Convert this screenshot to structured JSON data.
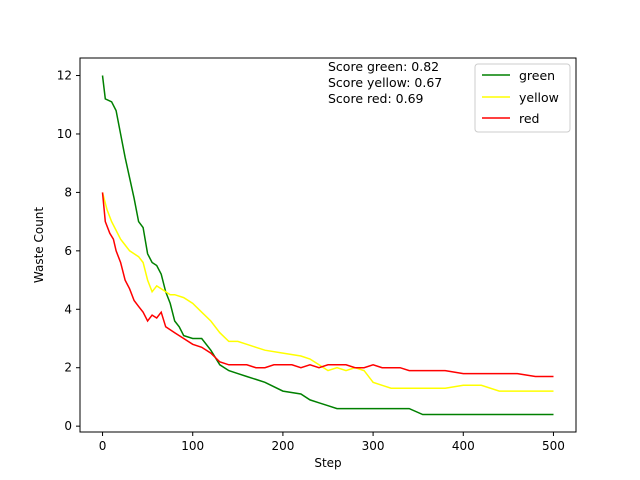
{
  "chart_data": {
    "type": "line",
    "xlabel": "Step",
    "ylabel": "Waste Count",
    "xlim": [
      -25,
      525
    ],
    "ylim": [
      -0.2,
      12.6
    ],
    "xticks": [
      0,
      100,
      200,
      300,
      400,
      500
    ],
    "yticks": [
      0,
      2,
      4,
      6,
      8,
      10,
      12
    ],
    "grid": false,
    "legend_position": "top-right",
    "annotations": [
      "Score green: 0.82",
      "Score yellow: 0.67",
      "Score red: 0.69"
    ],
    "series": [
      {
        "name": "green",
        "color": "#008000",
        "x": [
          0,
          3,
          10,
          15,
          20,
          25,
          30,
          35,
          40,
          45,
          50,
          55,
          60,
          65,
          70,
          75,
          80,
          85,
          90,
          100,
          110,
          120,
          130,
          140,
          150,
          160,
          170,
          180,
          200,
          220,
          230,
          240,
          250,
          260,
          280,
          300,
          320,
          340,
          355,
          400,
          450,
          500
        ],
        "y": [
          12.0,
          11.2,
          11.1,
          10.8,
          10.0,
          9.2,
          8.5,
          7.8,
          7.0,
          6.8,
          5.9,
          5.6,
          5.5,
          5.2,
          4.6,
          4.2,
          3.6,
          3.4,
          3.1,
          3.0,
          3.0,
          2.6,
          2.1,
          1.9,
          1.8,
          1.7,
          1.6,
          1.5,
          1.2,
          1.1,
          0.9,
          0.8,
          0.7,
          0.6,
          0.6,
          0.6,
          0.6,
          0.6,
          0.4,
          0.4,
          0.4,
          0.4
        ]
      },
      {
        "name": "yellow",
        "color": "#ffff00",
        "x": [
          0,
          5,
          10,
          15,
          20,
          25,
          30,
          35,
          40,
          45,
          50,
          55,
          60,
          65,
          70,
          75,
          80,
          90,
          100,
          110,
          120,
          130,
          140,
          150,
          160,
          170,
          180,
          200,
          220,
          230,
          240,
          250,
          260,
          270,
          280,
          290,
          300,
          310,
          320,
          340,
          360,
          380,
          400,
          420,
          440,
          460,
          480,
          500
        ],
        "y": [
          8.0,
          7.4,
          7.0,
          6.7,
          6.4,
          6.2,
          6.0,
          5.9,
          5.8,
          5.6,
          5.0,
          4.6,
          4.8,
          4.7,
          4.6,
          4.5,
          4.5,
          4.4,
          4.2,
          3.9,
          3.6,
          3.2,
          2.9,
          2.9,
          2.8,
          2.7,
          2.6,
          2.5,
          2.4,
          2.3,
          2.1,
          1.9,
          2.0,
          1.9,
          2.0,
          1.9,
          1.5,
          1.4,
          1.3,
          1.3,
          1.3,
          1.3,
          1.4,
          1.4,
          1.2,
          1.2,
          1.2,
          1.2
        ]
      },
      {
        "name": "red",
        "color": "#ff0000",
        "x": [
          0,
          3,
          8,
          12,
          15,
          20,
          25,
          30,
          35,
          40,
          45,
          50,
          55,
          60,
          65,
          70,
          75,
          80,
          90,
          100,
          110,
          120,
          130,
          140,
          150,
          160,
          170,
          180,
          190,
          200,
          210,
          220,
          230,
          240,
          250,
          260,
          270,
          280,
          290,
          300,
          310,
          320,
          330,
          340,
          360,
          380,
          400,
          420,
          440,
          460,
          480,
          500
        ],
        "y": [
          8.0,
          7.0,
          6.6,
          6.4,
          6.0,
          5.6,
          5.0,
          4.7,
          4.3,
          4.1,
          3.9,
          3.6,
          3.8,
          3.7,
          3.9,
          3.4,
          3.3,
          3.2,
          3.0,
          2.8,
          2.7,
          2.5,
          2.2,
          2.1,
          2.1,
          2.1,
          2.0,
          2.0,
          2.1,
          2.1,
          2.1,
          2.0,
          2.1,
          2.0,
          2.1,
          2.1,
          2.1,
          2.0,
          2.0,
          2.1,
          2.0,
          2.0,
          2.0,
          1.9,
          1.9,
          1.9,
          1.8,
          1.8,
          1.8,
          1.8,
          1.7,
          1.7
        ]
      }
    ]
  }
}
